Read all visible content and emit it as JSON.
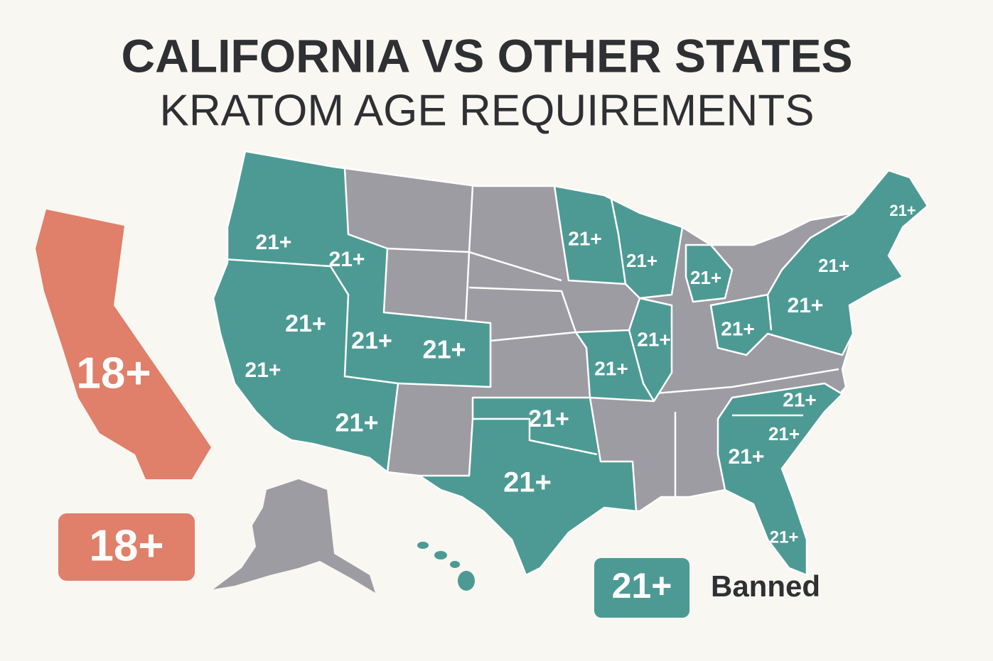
{
  "header": {
    "title": "CALIFORNIA VS OTHER STATES",
    "subtitle": "KRATOM AGE REQUIREMENTS"
  },
  "california": {
    "label": "18+"
  },
  "map_labels": [
    "21+",
    "21+",
    "21+",
    "21+",
    "21+",
    "21+",
    "21+",
    "21+",
    "21+",
    "21+",
    "21+",
    "21+",
    "21+",
    "21+",
    "21+",
    "21+",
    "21+",
    "21+",
    "21+",
    "21+",
    "21+",
    "21+"
  ],
  "legend": [
    {
      "label": "18+"
    },
    {
      "label": "21+"
    },
    {
      "label": "Banned"
    }
  ]
}
